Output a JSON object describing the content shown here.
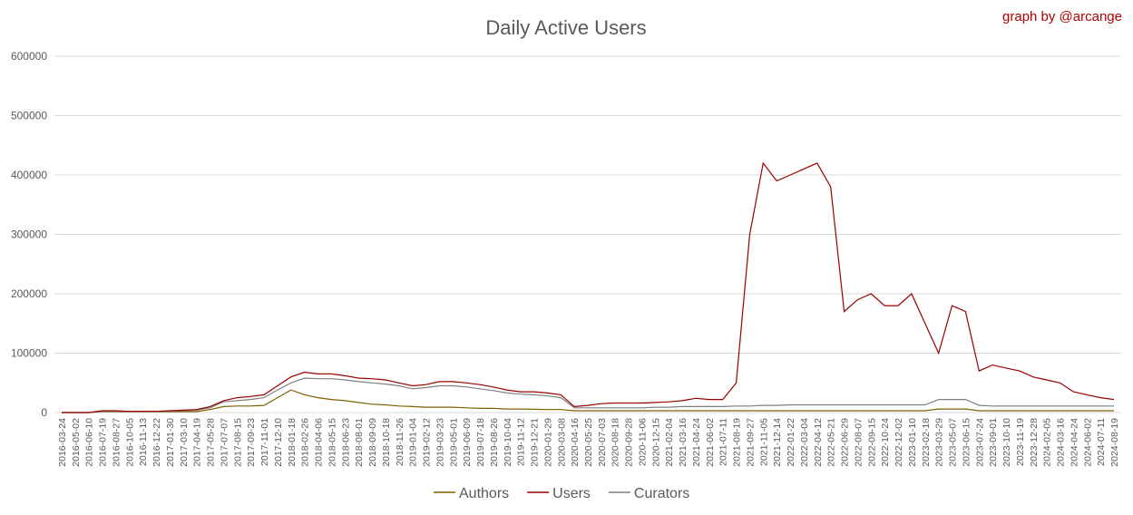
{
  "chart_data": {
    "type": "line",
    "title": "Daily Active Users",
    "credit": "graph by @arcange",
    "categories": [
      "2016-03-24",
      "2016-05-02",
      "2016-06-10",
      "2016-07-19",
      "2016-08-27",
      "2016-10-05",
      "2016-11-13",
      "2016-12-22",
      "2017-01-30",
      "2017-03-10",
      "2017-04-19",
      "2017-05-28",
      "2017-07-07",
      "2017-08-15",
      "2017-09-23",
      "2017-11-01",
      "2017-12-10",
      "2018-01-18",
      "2018-02-26",
      "2018-04-06",
      "2018-05-15",
      "2018-06-23",
      "2018-08-01",
      "2018-09-09",
      "2018-10-18",
      "2018-11-26",
      "2019-01-04",
      "2019-02-12",
      "2019-03-23",
      "2019-05-01",
      "2019-06-09",
      "2019-07-18",
      "2019-08-26",
      "2019-10-04",
      "2019-11-12",
      "2019-12-21",
      "2020-01-29",
      "2020-03-08",
      "2020-04-16",
      "2020-05-25",
      "2020-07-03",
      "2020-08-18",
      "2020-09-28",
      "2020-11-06",
      "2020-12-15",
      "2021-02-04",
      "2021-03-16",
      "2021-04-24",
      "2021-06-02",
      "2021-07-11",
      "2021-08-19",
      "2021-09-27",
      "2021-11-05",
      "2021-12-14",
      "2022-01-22",
      "2022-03-04",
      "2022-04-12",
      "2022-05-21",
      "2022-06-29",
      "2022-08-07",
      "2022-09-15",
      "2022-10-24",
      "2022-12-02",
      "2023-01-10",
      "2023-02-18",
      "2023-03-29",
      "2023-05-07",
      "2023-06-15",
      "2023-07-24",
      "2023-09-01",
      "2023-10-10",
      "2023-11-19",
      "2023-12-28",
      "2024-02-05",
      "2024-03-16",
      "2024-04-24",
      "2024-06-02",
      "2024-07-11",
      "2024-08-19"
    ],
    "series": [
      {
        "name": "Authors",
        "color": "#7f6000",
        "values": [
          0,
          0,
          0,
          1500,
          1500,
          1500,
          1500,
          1500,
          1500,
          1500,
          1500,
          5000,
          10000,
          11000,
          11000,
          12000,
          25000,
          38000,
          30000,
          25000,
          22000,
          20000,
          17000,
          14000,
          13000,
          11000,
          10000,
          9000,
          9000,
          9000,
          8000,
          7000,
          7000,
          6000,
          6000,
          5500,
          5000,
          5000,
          3000,
          3000,
          3000,
          3000,
          3000,
          3000,
          3000,
          3000,
          3000,
          3000,
          3000,
          3000,
          3000,
          3000,
          3000,
          3000,
          3000,
          3000,
          3000,
          3000,
          3000,
          3000,
          3000,
          3000,
          3000,
          3000,
          3000,
          6000,
          6000,
          6000,
          3000,
          3000,
          3000,
          3000,
          3000,
          3000,
          3000,
          3000,
          3000,
          3000,
          3000
        ]
      },
      {
        "name": "Users",
        "color": "#990000",
        "values": [
          0,
          0,
          0,
          3000,
          3000,
          2000,
          2000,
          2000,
          3000,
          4000,
          5000,
          10000,
          20000,
          25000,
          27000,
          30000,
          45000,
          60000,
          68000,
          65000,
          65000,
          62000,
          58000,
          57000,
          55000,
          50000,
          45000,
          47000,
          52000,
          52000,
          50000,
          47000,
          43000,
          38000,
          35000,
          35000,
          33000,
          30000,
          10000,
          12000,
          15000,
          16000,
          16000,
          16000,
          17000,
          18000,
          20000,
          24000,
          22000,
          22000,
          50000,
          300000,
          420000,
          390000,
          400000,
          410000,
          420000,
          380000,
          170000,
          190000,
          200000,
          180000,
          180000,
          200000,
          150000,
          100000,
          180000,
          170000,
          70000,
          80000,
          75000,
          70000,
          60000,
          55000,
          50000,
          35000,
          30000,
          25000,
          22000
        ]
      },
      {
        "name": "Curators",
        "color": "#7f7f7f",
        "values": [
          0,
          0,
          0,
          2000,
          2000,
          2000,
          2000,
          2000,
          2500,
          3000,
          4000,
          8000,
          18000,
          20000,
          22000,
          25000,
          38000,
          50000,
          58000,
          57000,
          57000,
          55000,
          52000,
          50000,
          48000,
          45000,
          40000,
          42000,
          45000,
          45000,
          43000,
          40000,
          37000,
          33000,
          31000,
          30000,
          28000,
          25000,
          8000,
          8000,
          8000,
          8000,
          8000,
          8000,
          9000,
          9000,
          10000,
          10000,
          10000,
          10000,
          11000,
          11000,
          12000,
          12000,
          13000,
          13000,
          13000,
          13000,
          13000,
          13000,
          13000,
          13000,
          13000,
          13000,
          13000,
          22000,
          22000,
          22000,
          12000,
          11000,
          11000,
          11000,
          11000,
          11000,
          11000,
          11000,
          11000,
          11000,
          11000
        ]
      }
    ],
    "ylim": [
      0,
      600000
    ],
    "yticks": [
      0,
      100000,
      200000,
      300000,
      400000,
      500000,
      600000
    ],
    "grid": true,
    "legend": "bottom"
  }
}
